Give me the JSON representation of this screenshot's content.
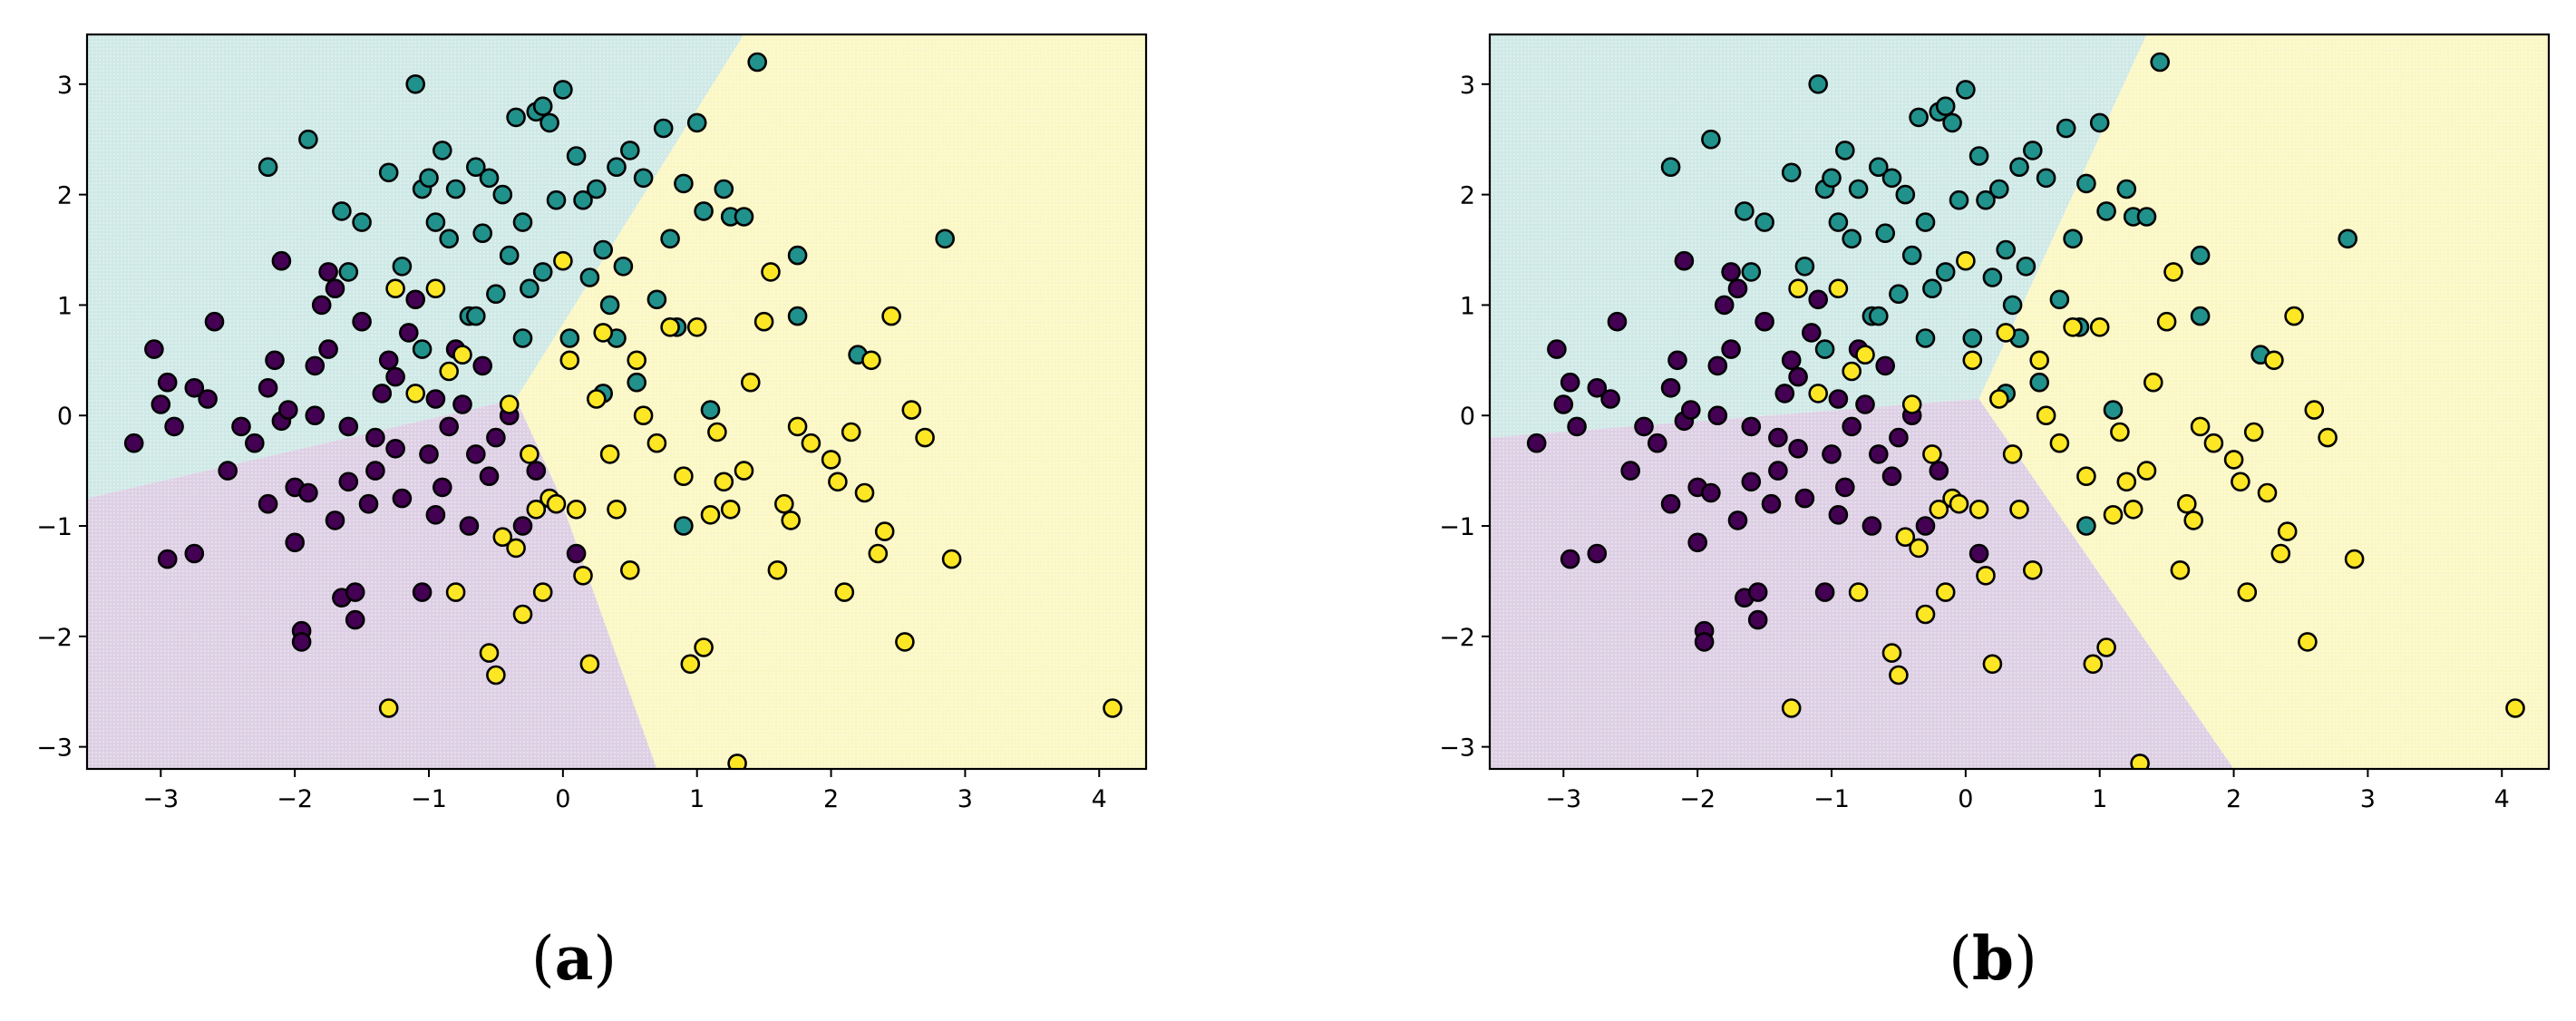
{
  "colors": {
    "class0": "#440154",
    "class1": "#21918c",
    "class2": "#fde725",
    "region0": "#ddcfe4",
    "region1": "#cfe9e6",
    "region2": "#fbf7c4",
    "edge": "#000000"
  },
  "chart_data": [
    {
      "type": "scatter",
      "caption_letter": "a",
      "xlim": [
        -3.55,
        4.35
      ],
      "ylim": [
        -3.2,
        3.45
      ],
      "xticks": [
        -3,
        -2,
        -1,
        0,
        1,
        2,
        3,
        4
      ],
      "yticks": [
        -3,
        -2,
        -1,
        0,
        1,
        2,
        3
      ],
      "xtick_labels": [
        "−3",
        "−2",
        "−1",
        "0",
        "1",
        "2",
        "3",
        "4"
      ],
      "ytick_labels": [
        "−3",
        "−2",
        "−1",
        "0",
        "1",
        "2",
        "3"
      ],
      "grid": false,
      "regions": [
        {
          "class": 1,
          "polygon": [
            [
              -3.55,
              3.45
            ],
            [
              1.35,
              3.45
            ],
            [
              -0.35,
              0.15
            ],
            [
              -3.55,
              -0.75
            ]
          ]
        },
        {
          "class": 0,
          "polygon": [
            [
              -3.55,
              -0.75
            ],
            [
              -0.35,
              0.15
            ],
            [
              -0.05,
              -0.65
            ],
            [
              0.7,
              -3.2
            ],
            [
              -3.55,
              -3.2
            ]
          ]
        },
        {
          "class": 2,
          "polygon": [
            [
              1.35,
              3.45
            ],
            [
              4.35,
              3.45
            ],
            [
              4.35,
              -3.2
            ],
            [
              0.7,
              -3.2
            ],
            [
              -0.05,
              -0.65
            ],
            [
              -0.35,
              0.15
            ]
          ]
        }
      ]
    },
    {
      "type": "scatter",
      "caption_letter": "b",
      "xlim": [
        -3.55,
        4.35
      ],
      "ylim": [
        -3.2,
        3.45
      ],
      "xticks": [
        -3,
        -2,
        -1,
        0,
        1,
        2,
        3,
        4
      ],
      "yticks": [
        -3,
        -2,
        -1,
        0,
        1,
        2,
        3
      ],
      "xtick_labels": [
        "−3",
        "−2",
        "−1",
        "0",
        "1",
        "2",
        "3",
        "4"
      ],
      "ytick_labels": [
        "−3",
        "−2",
        "−1",
        "0",
        "1",
        "2",
        "3"
      ],
      "grid": false,
      "regions": [
        {
          "class": 1,
          "polygon": [
            [
              -3.55,
              3.45
            ],
            [
              1.35,
              3.45
            ],
            [
              0.1,
              0.15
            ],
            [
              -3.55,
              -0.2
            ]
          ]
        },
        {
          "class": 0,
          "polygon": [
            [
              -3.55,
              -0.2
            ],
            [
              0.1,
              0.15
            ],
            [
              2.0,
              -3.2
            ],
            [
              -3.55,
              -3.2
            ]
          ]
        },
        {
          "class": 2,
          "polygon": [
            [
              1.35,
              3.45
            ],
            [
              4.35,
              3.45
            ],
            [
              4.35,
              -3.2
            ],
            [
              2.0,
              -3.2
            ],
            [
              0.1,
              0.15
            ]
          ]
        }
      ]
    }
  ],
  "points": {
    "class0": [
      [
        -3.2,
        -0.25
      ],
      [
        -3.05,
        0.6
      ],
      [
        -2.95,
        0.3
      ],
      [
        -3.0,
        0.1
      ],
      [
        -2.9,
        -0.1
      ],
      [
        -2.95,
        -1.3
      ],
      [
        -2.75,
        -1.25
      ],
      [
        -2.75,
        0.25
      ],
      [
        -2.65,
        0.15
      ],
      [
        -2.6,
        0.85
      ],
      [
        -2.5,
        -0.5
      ],
      [
        -2.4,
        -0.1
      ],
      [
        -2.3,
        -0.25
      ],
      [
        -2.2,
        0.25
      ],
      [
        -2.15,
        0.5
      ],
      [
        -2.1,
        1.4
      ],
      [
        -2.1,
        -0.05
      ],
      [
        -2.0,
        -0.65
      ],
      [
        -2.0,
        -1.15
      ],
      [
        -1.95,
        -1.95
      ],
      [
        -1.95,
        -2.05
      ],
      [
        -1.9,
        -0.7
      ],
      [
        -1.85,
        0.0
      ],
      [
        -1.8,
        1.0
      ],
      [
        -1.75,
        1.3
      ],
      [
        -1.7,
        1.15
      ],
      [
        -1.7,
        -0.95
      ],
      [
        -1.65,
        -1.65
      ],
      [
        -1.6,
        -0.6
      ],
      [
        -1.55,
        -1.85
      ],
      [
        -1.55,
        -1.6
      ],
      [
        -1.5,
        0.85
      ],
      [
        -1.45,
        -0.8
      ],
      [
        -1.4,
        -0.5
      ],
      [
        -1.4,
        -0.2
      ],
      [
        -1.35,
        0.2
      ],
      [
        -1.3,
        0.5
      ],
      [
        -1.25,
        -0.3
      ],
      [
        -1.2,
        -0.75
      ],
      [
        -1.15,
        0.75
      ],
      [
        -1.1,
        1.05
      ],
      [
        -1.05,
        -1.6
      ],
      [
        -1.0,
        -0.35
      ],
      [
        -0.95,
        0.15
      ],
      [
        -0.9,
        -0.65
      ],
      [
        -0.85,
        -0.1
      ],
      [
        -0.8,
        0.6
      ],
      [
        -0.7,
        -1.0
      ],
      [
        -0.65,
        -0.35
      ],
      [
        -0.6,
        0.45
      ],
      [
        -0.55,
        -0.55
      ],
      [
        -0.5,
        -0.2
      ],
      [
        -0.4,
        0.0
      ],
      [
        -0.3,
        -1.0
      ],
      [
        -0.2,
        -0.5
      ],
      [
        0.1,
        -1.25
      ],
      [
        -2.05,
        0.05
      ],
      [
        -1.85,
        0.45
      ],
      [
        -1.6,
        -0.1
      ],
      [
        -2.2,
        -0.8
      ],
      [
        -1.25,
        0.35
      ],
      [
        -0.95,
        -0.9
      ],
      [
        -1.75,
        0.6
      ],
      [
        -0.75,
        0.1
      ]
    ],
    "class1": [
      [
        -2.2,
        2.25
      ],
      [
        -1.9,
        2.5
      ],
      [
        -1.65,
        1.85
      ],
      [
        -1.6,
        1.3
      ],
      [
        -1.5,
        1.75
      ],
      [
        -1.3,
        2.2
      ],
      [
        -1.2,
        1.35
      ],
      [
        -1.1,
        3.0
      ],
      [
        -1.05,
        2.05
      ],
      [
        -1.0,
        2.15
      ],
      [
        -0.95,
        1.75
      ],
      [
        -0.9,
        2.4
      ],
      [
        -0.85,
        1.6
      ],
      [
        -0.8,
        2.05
      ],
      [
        -0.7,
        0.9
      ],
      [
        -0.65,
        2.25
      ],
      [
        -0.6,
        1.65
      ],
      [
        -0.55,
        2.15
      ],
      [
        -0.5,
        1.1
      ],
      [
        -0.45,
        2.0
      ],
      [
        -0.4,
        1.45
      ],
      [
        -0.35,
        2.7
      ],
      [
        -0.3,
        1.75
      ],
      [
        -0.25,
        1.15
      ],
      [
        -0.2,
        2.75
      ],
      [
        -0.15,
        2.8
      ],
      [
        -0.1,
        2.65
      ],
      [
        -0.05,
        1.95
      ],
      [
        0.0,
        2.95
      ],
      [
        0.05,
        0.7
      ],
      [
        0.1,
        2.35
      ],
      [
        0.15,
        1.95
      ],
      [
        0.2,
        1.25
      ],
      [
        0.25,
        2.05
      ],
      [
        0.3,
        1.5
      ],
      [
        0.35,
        1.0
      ],
      [
        0.4,
        2.25
      ],
      [
        0.45,
        1.35
      ],
      [
        0.5,
        2.4
      ],
      [
        0.6,
        2.15
      ],
      [
        0.7,
        1.05
      ],
      [
        0.75,
        2.6
      ],
      [
        0.8,
        1.6
      ],
      [
        0.85,
        0.8
      ],
      [
        0.9,
        2.1
      ],
      [
        1.0,
        2.65
      ],
      [
        1.05,
        1.85
      ],
      [
        1.1,
        0.05
      ],
      [
        1.2,
        2.05
      ],
      [
        1.25,
        1.8
      ],
      [
        1.35,
        1.8
      ],
      [
        1.45,
        3.2
      ],
      [
        1.75,
        0.9
      ],
      [
        1.75,
        1.45
      ],
      [
        2.2,
        0.55
      ],
      [
        2.85,
        1.6
      ],
      [
        0.9,
        -1.0
      ],
      [
        0.3,
        0.2
      ],
      [
        -1.05,
        0.6
      ],
      [
        -0.3,
        0.7
      ],
      [
        0.55,
        0.3
      ],
      [
        -0.15,
        1.3
      ],
      [
        0.4,
        0.7
      ],
      [
        -0.65,
        0.9
      ]
    ],
    "class2": [
      [
        -1.3,
        -2.65
      ],
      [
        -1.25,
        1.15
      ],
      [
        -1.1,
        0.2
      ],
      [
        -0.95,
        1.15
      ],
      [
        -0.85,
        0.4
      ],
      [
        -0.8,
        -1.6
      ],
      [
        -0.75,
        0.55
      ],
      [
        -0.55,
        -2.15
      ],
      [
        -0.5,
        -2.35
      ],
      [
        -0.45,
        -1.1
      ],
      [
        -0.4,
        0.1
      ],
      [
        -0.35,
        -1.2
      ],
      [
        -0.3,
        -1.8
      ],
      [
        -0.25,
        -0.35
      ],
      [
        -0.2,
        -0.85
      ],
      [
        -0.15,
        -1.6
      ],
      [
        -0.1,
        -0.75
      ],
      [
        -0.05,
        -0.8
      ],
      [
        0.0,
        1.4
      ],
      [
        0.05,
        0.5
      ],
      [
        0.1,
        -0.85
      ],
      [
        0.15,
        -1.45
      ],
      [
        0.2,
        -2.25
      ],
      [
        0.25,
        0.15
      ],
      [
        0.3,
        0.75
      ],
      [
        0.35,
        -0.35
      ],
      [
        0.4,
        -0.85
      ],
      [
        0.5,
        -1.4
      ],
      [
        0.55,
        0.5
      ],
      [
        0.6,
        0.0
      ],
      [
        0.7,
        -0.25
      ],
      [
        0.8,
        0.8
      ],
      [
        0.9,
        -0.55
      ],
      [
        0.95,
        -2.25
      ],
      [
        1.0,
        0.8
      ],
      [
        1.05,
        -2.1
      ],
      [
        1.1,
        -0.9
      ],
      [
        1.15,
        -0.15
      ],
      [
        1.2,
        -0.6
      ],
      [
        1.25,
        -0.85
      ],
      [
        1.3,
        -3.15
      ],
      [
        1.35,
        -0.5
      ],
      [
        1.4,
        0.3
      ],
      [
        1.5,
        0.85
      ],
      [
        1.55,
        1.3
      ],
      [
        1.6,
        -1.4
      ],
      [
        1.65,
        -0.8
      ],
      [
        1.7,
        -0.95
      ],
      [
        1.75,
        -0.1
      ],
      [
        1.85,
        -0.25
      ],
      [
        2.0,
        -0.4
      ],
      [
        2.05,
        -0.6
      ],
      [
        2.1,
        -1.6
      ],
      [
        2.15,
        -0.15
      ],
      [
        2.25,
        -0.7
      ],
      [
        2.3,
        0.5
      ],
      [
        2.35,
        -1.25
      ],
      [
        2.4,
        -1.05
      ],
      [
        2.45,
        0.9
      ],
      [
        2.55,
        -2.05
      ],
      [
        2.6,
        0.05
      ],
      [
        2.7,
        -0.2
      ],
      [
        2.9,
        -1.3
      ],
      [
        4.1,
        -2.65
      ]
    ]
  }
}
